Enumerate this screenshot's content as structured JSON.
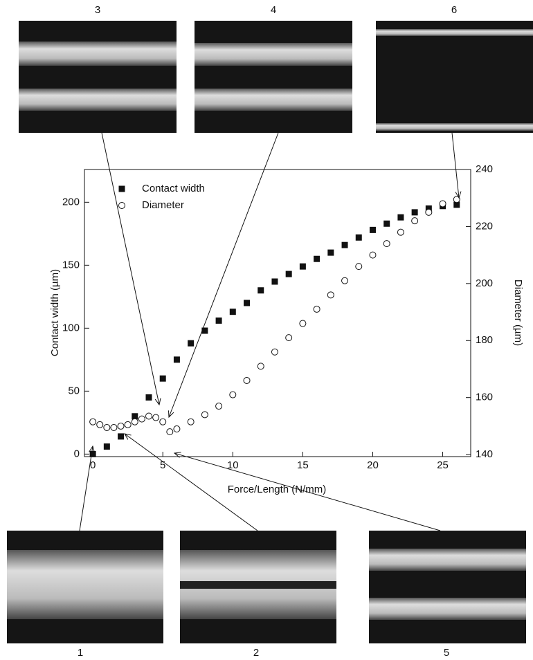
{
  "chart_data": {
    "type": "scatter",
    "xlabel": "Force/Length (N/mm)",
    "ylabel": "Contact width (µm)",
    "y2label": "Diameter (µm)",
    "xlim": [
      -0.6,
      27
    ],
    "ylim": [
      -2,
      226
    ],
    "y2lim": [
      139.3,
      240
    ],
    "xticks": [
      0,
      5,
      10,
      15,
      20,
      25
    ],
    "yticks": [
      0,
      50,
      100,
      150,
      200
    ],
    "y2ticks": [
      140,
      160,
      180,
      200,
      220,
      240
    ],
    "legend": "upper left",
    "annotations": [
      "3",
      "4",
      "6",
      "1",
      "2",
      "5"
    ],
    "series": [
      {
        "name": "Contact width",
        "color": "#111111",
        "marker": "square",
        "x": [
          0,
          1,
          2,
          3,
          4,
          5,
          6,
          7,
          8,
          9,
          10,
          11,
          12,
          13,
          14,
          15,
          16,
          17,
          18,
          19,
          20,
          21,
          22,
          23,
          24,
          25,
          26
        ],
        "values": [
          0,
          6,
          14,
          30,
          45,
          60,
          75,
          88,
          98,
          106,
          113,
          120,
          130,
          137,
          143,
          149,
          155,
          160,
          166,
          172,
          178,
          183,
          188,
          192,
          195,
          197,
          198
        ]
      },
      {
        "name": "Diameter",
        "color": "#ffffff",
        "marker": "circle",
        "axis": "y2",
        "x": [
          0,
          0.5,
          1,
          1.5,
          2,
          2.5,
          3,
          3.5,
          4,
          4.5,
          5,
          5.5,
          6,
          7,
          8,
          9,
          10,
          11,
          12,
          13,
          14,
          15,
          16,
          17,
          18,
          19,
          20,
          21,
          22,
          23,
          24,
          25,
          26
        ],
        "values": [
          151.5,
          150.5,
          149.5,
          149.5,
          150,
          150.5,
          151.5,
          152.5,
          153.5,
          153,
          151.5,
          148,
          149,
          151.5,
          154,
          157,
          161,
          166,
          171,
          176,
          181,
          186,
          191,
          196,
          201,
          206,
          210,
          214,
          218,
          222,
          225,
          228,
          229.5
        ]
      }
    ]
  }
}
